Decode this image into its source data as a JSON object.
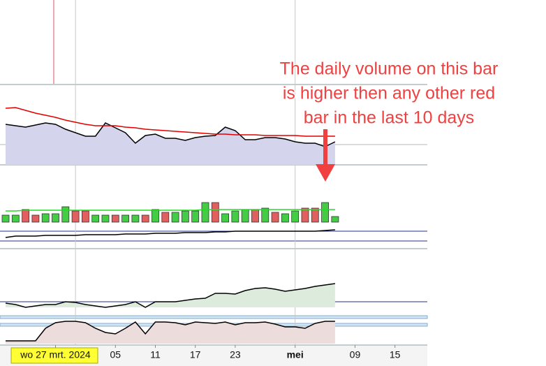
{
  "chart_data": {
    "type": "multi-panel",
    "annotation": [
      "The daily volume on this bar",
      "is higher then any other red",
      "bar in the last 10 days"
    ],
    "xlim": [
      -0.56,
      42.24
    ],
    "xticks": [
      {
        "value": 5,
        "label": "wo 27 mrt. 2024"
      },
      {
        "value": 11,
        "label": "05"
      },
      {
        "value": 15,
        "label": "11"
      },
      {
        "value": 19,
        "label": "17"
      },
      {
        "value": 23,
        "label": "23"
      },
      {
        "value": 29,
        "label": "mei"
      },
      {
        "value": 35,
        "label": "09"
      },
      {
        "value": 39,
        "label": "15"
      }
    ],
    "xgrid": [
      7,
      29
    ],
    "panels": [
      {
        "ylim": [
          0,
          115
        ],
        "series": [
          {
            "type": "area",
            "color": "#000000",
            "fill": "#d4d4ec",
            "values": [
              58,
              56,
              54,
              57,
              60,
              58,
              51,
              46,
              41,
              41,
              60,
              53,
              46,
              31,
              42,
              44,
              38,
              38,
              35,
              39,
              41,
              42,
              54,
              49,
              36,
              36,
              39,
              39,
              37,
              33,
              31,
              31,
              26,
              33
            ]
          },
          {
            "type": "line",
            "color": "#e00000",
            "values": [
              81,
              82,
              78,
              74,
              71,
              68,
              64,
              61,
              58,
              56,
              56,
              56,
              54,
              53,
              51,
              50,
              49,
              48,
              47,
              46,
              45,
              44,
              44,
              43,
              43,
              43,
              42,
              42,
              42,
              42,
              41,
              41,
              41,
              41
            ]
          }
        ]
      },
      {
        "ylim": [
          0,
          33
        ],
        "series": [
          {
            "type": "bar",
            "values": [
              10,
              10,
              18,
              10,
              12,
              12,
              22,
              16,
              16,
              10,
              10,
              10,
              10,
              10,
              10,
              18,
              14,
              14,
              16,
              16,
              28,
              28,
              12,
              16,
              18,
              18,
              20,
              14,
              12,
              16,
              20,
              20,
              28,
              8
            ],
            "colors": [
              "#44cc44",
              "#44cc44",
              "#e06060",
              "#e06060",
              "#44cc44",
              "#44cc44",
              "#44cc44",
              "#e06060",
              "#e06060",
              "#44cc44",
              "#44cc44",
              "#e06060",
              "#44cc44",
              "#44cc44",
              "#e06060",
              "#44cc44",
              "#e06060",
              "#44cc44",
              "#44cc44",
              "#44cc44",
              "#44cc44",
              "#e06060",
              "#44cc44",
              "#44cc44",
              "#44cc44",
              "#e06060",
              "#44cc44",
              "#e06060",
              "#44cc44",
              "#44cc44",
              "#e06060",
              "#e06060",
              "#44cc44",
              "#44cc44"
            ]
          },
          {
            "type": "line",
            "color": "#22dd22",
            "values": [
              16,
              16,
              17,
              17,
              17,
              17,
              17,
              17,
              17,
              17,
              17,
              17,
              17,
              17,
              17,
              17,
              17,
              17,
              17,
              17,
              18,
              18,
              18,
              18,
              18,
              18,
              18,
              18,
              18,
              18,
              18,
              18,
              18,
              18
            ]
          }
        ]
      },
      {
        "ylim": [
          0,
          31
        ],
        "series": [
          {
            "type": "line",
            "color": "#000000",
            "values": [
              16,
              18,
              18,
              18,
              19,
              19,
              19,
              19,
              20,
              20,
              20,
              20,
              21,
              21,
              21,
              22,
              22,
              22,
              23,
              23,
              23,
              24,
              24,
              25,
              25,
              25,
              25,
              25,
              25,
              25,
              25,
              25,
              26,
              27
            ]
          }
        ]
      },
      {
        "ylim": [
          0,
          70
        ],
        "series": [
          {
            "type": "area",
            "color": "#000000",
            "fill": "#dcebdc",
            "values": [
              6,
              4,
              0,
              2,
              4,
              4,
              8,
              7,
              4,
              2,
              0,
              2,
              4,
              8,
              0,
              8,
              8,
              8,
              10,
              12,
              13,
              20,
              20,
              19,
              24,
              27,
              28,
              26,
              23,
              25,
              27,
              30,
              32,
              34
            ]
          }
        ]
      },
      {
        "ylim": [
          0,
          40
        ],
        "series": [
          {
            "type": "area",
            "color": "#000000",
            "fill": "#ecdcdc",
            "values": [
              4,
              4,
              4,
              4,
              22,
              30,
              32,
              32,
              30,
              22,
              16,
              14,
              22,
              31,
              14,
              31,
              31,
              30,
              27,
              31,
              30,
              29,
              31,
              27,
              30,
              30,
              31,
              28,
              24,
              24,
              22,
              29,
              32,
              32
            ]
          }
        ]
      }
    ]
  }
}
